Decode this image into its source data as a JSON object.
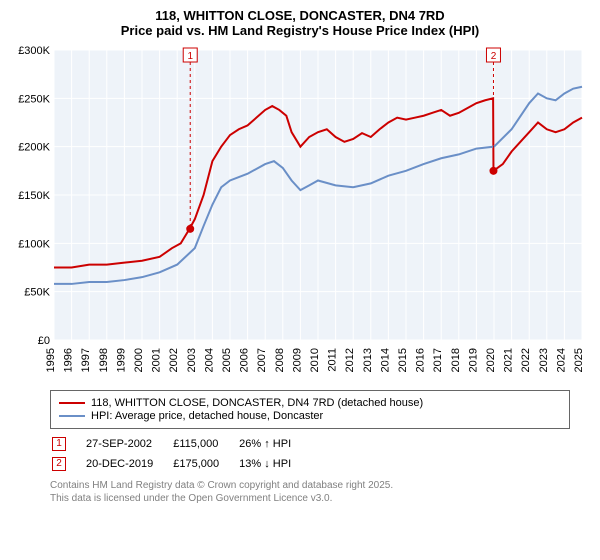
{
  "title_line1": "118, WHITTON CLOSE, DONCASTER, DN4 7RD",
  "title_line2": "Price paid vs. HM Land Registry's House Price Index (HPI)",
  "chart": {
    "type": "line",
    "plot_bg": "#eef3f9",
    "outer_bg": "#ffffff",
    "y_axis": {
      "min": 0,
      "max": 300000,
      "tick_step": 50000,
      "tick_prefix": "£",
      "tick_labels": [
        "£0",
        "£50K",
        "£100K",
        "£150K",
        "£200K",
        "£250K",
        "£300K"
      ],
      "label_fontsize": 11,
      "label_color": "#000000"
    },
    "x_axis": {
      "min": 1995,
      "max": 2025,
      "tick_step": 1,
      "years": [
        1995,
        1996,
        1997,
        1998,
        1999,
        2000,
        2001,
        2002,
        2003,
        2004,
        2005,
        2006,
        2007,
        2008,
        2009,
        2010,
        2011,
        2012,
        2013,
        2014,
        2015,
        2016,
        2017,
        2018,
        2019,
        2020,
        2021,
        2022,
        2023,
        2024,
        2025
      ],
      "label_fontsize": 11,
      "label_color": "#000000"
    },
    "grid_color": "#ffffff",
    "series": [
      {
        "name": "price_paid",
        "label": "118, WHITTON CLOSE, DONCASTER, DN4 7RD (detached house)",
        "color": "#cc0000",
        "line_width": 2,
        "data": [
          {
            "x": 1995.0,
            "y": 75000
          },
          {
            "x": 1996.0,
            "y": 75000
          },
          {
            "x": 1997.0,
            "y": 78000
          },
          {
            "x": 1998.0,
            "y": 78000
          },
          {
            "x": 1999.0,
            "y": 80000
          },
          {
            "x": 2000.0,
            "y": 82000
          },
          {
            "x": 2001.0,
            "y": 86000
          },
          {
            "x": 2001.7,
            "y": 95000
          },
          {
            "x": 2002.2,
            "y": 100000
          },
          {
            "x": 2002.7,
            "y": 115000
          },
          {
            "x": 2003.0,
            "y": 125000
          },
          {
            "x": 2003.5,
            "y": 150000
          },
          {
            "x": 2004.0,
            "y": 185000
          },
          {
            "x": 2004.5,
            "y": 200000
          },
          {
            "x": 2005.0,
            "y": 212000
          },
          {
            "x": 2005.5,
            "y": 218000
          },
          {
            "x": 2006.0,
            "y": 222000
          },
          {
            "x": 2006.5,
            "y": 230000
          },
          {
            "x": 2007.0,
            "y": 238000
          },
          {
            "x": 2007.4,
            "y": 242000
          },
          {
            "x": 2007.8,
            "y": 238000
          },
          {
            "x": 2008.2,
            "y": 232000
          },
          {
            "x": 2008.5,
            "y": 215000
          },
          {
            "x": 2009.0,
            "y": 200000
          },
          {
            "x": 2009.5,
            "y": 210000
          },
          {
            "x": 2010.0,
            "y": 215000
          },
          {
            "x": 2010.5,
            "y": 218000
          },
          {
            "x": 2011.0,
            "y": 210000
          },
          {
            "x": 2011.5,
            "y": 205000
          },
          {
            "x": 2012.0,
            "y": 208000
          },
          {
            "x": 2012.5,
            "y": 214000
          },
          {
            "x": 2013.0,
            "y": 210000
          },
          {
            "x": 2013.5,
            "y": 218000
          },
          {
            "x": 2014.0,
            "y": 225000
          },
          {
            "x": 2014.5,
            "y": 230000
          },
          {
            "x": 2015.0,
            "y": 228000
          },
          {
            "x": 2015.5,
            "y": 230000
          },
          {
            "x": 2016.0,
            "y": 232000
          },
          {
            "x": 2016.5,
            "y": 235000
          },
          {
            "x": 2017.0,
            "y": 238000
          },
          {
            "x": 2017.5,
            "y": 232000
          },
          {
            "x": 2018.0,
            "y": 235000
          },
          {
            "x": 2018.5,
            "y": 240000
          },
          {
            "x": 2019.0,
            "y": 245000
          },
          {
            "x": 2019.5,
            "y": 248000
          },
          {
            "x": 2019.95,
            "y": 250000
          },
          {
            "x": 2019.97,
            "y": 175000
          },
          {
            "x": 2020.5,
            "y": 182000
          },
          {
            "x": 2021.0,
            "y": 195000
          },
          {
            "x": 2021.5,
            "y": 205000
          },
          {
            "x": 2022.0,
            "y": 215000
          },
          {
            "x": 2022.5,
            "y": 225000
          },
          {
            "x": 2023.0,
            "y": 218000
          },
          {
            "x": 2023.5,
            "y": 215000
          },
          {
            "x": 2024.0,
            "y": 218000
          },
          {
            "x": 2024.5,
            "y": 225000
          },
          {
            "x": 2025.0,
            "y": 230000
          }
        ]
      },
      {
        "name": "hpi",
        "label": "HPI: Average price, detached house, Doncaster",
        "color": "#6a8fc7",
        "line_width": 2,
        "data": [
          {
            "x": 1995.0,
            "y": 58000
          },
          {
            "x": 1996.0,
            "y": 58000
          },
          {
            "x": 1997.0,
            "y": 60000
          },
          {
            "x": 1998.0,
            "y": 60000
          },
          {
            "x": 1999.0,
            "y": 62000
          },
          {
            "x": 2000.0,
            "y": 65000
          },
          {
            "x": 2001.0,
            "y": 70000
          },
          {
            "x": 2002.0,
            "y": 78000
          },
          {
            "x": 2003.0,
            "y": 95000
          },
          {
            "x": 2003.5,
            "y": 118000
          },
          {
            "x": 2004.0,
            "y": 140000
          },
          {
            "x": 2004.5,
            "y": 158000
          },
          {
            "x": 2005.0,
            "y": 165000
          },
          {
            "x": 2006.0,
            "y": 172000
          },
          {
            "x": 2007.0,
            "y": 182000
          },
          {
            "x": 2007.5,
            "y": 185000
          },
          {
            "x": 2008.0,
            "y": 178000
          },
          {
            "x": 2008.5,
            "y": 165000
          },
          {
            "x": 2009.0,
            "y": 155000
          },
          {
            "x": 2009.5,
            "y": 160000
          },
          {
            "x": 2010.0,
            "y": 165000
          },
          {
            "x": 2011.0,
            "y": 160000
          },
          {
            "x": 2012.0,
            "y": 158000
          },
          {
            "x": 2013.0,
            "y": 162000
          },
          {
            "x": 2014.0,
            "y": 170000
          },
          {
            "x": 2015.0,
            "y": 175000
          },
          {
            "x": 2016.0,
            "y": 182000
          },
          {
            "x": 2017.0,
            "y": 188000
          },
          {
            "x": 2018.0,
            "y": 192000
          },
          {
            "x": 2019.0,
            "y": 198000
          },
          {
            "x": 2020.0,
            "y": 200000
          },
          {
            "x": 2021.0,
            "y": 218000
          },
          {
            "x": 2022.0,
            "y": 245000
          },
          {
            "x": 2022.5,
            "y": 255000
          },
          {
            "x": 2023.0,
            "y": 250000
          },
          {
            "x": 2023.5,
            "y": 248000
          },
          {
            "x": 2024.0,
            "y": 255000
          },
          {
            "x": 2024.5,
            "y": 260000
          },
          {
            "x": 2025.0,
            "y": 262000
          }
        ]
      }
    ],
    "markers": [
      {
        "id": "1",
        "x": 2002.74,
        "y": 115000,
        "top_y": 300000,
        "color": "#cc0000",
        "line_dash": "3,3",
        "point_radius": 4
      },
      {
        "id": "2",
        "x": 2019.97,
        "y": 175000,
        "top_y": 300000,
        "color": "#cc0000",
        "line_dash": "3,3",
        "point_radius": 4
      }
    ]
  },
  "legend": {
    "border_color": "#666666",
    "rows": [
      {
        "color": "#cc0000",
        "label": "118, WHITTON CLOSE, DONCASTER, DN4 7RD (detached house)"
      },
      {
        "color": "#6a8fc7",
        "label": "HPI: Average price, detached house, Doncaster"
      }
    ]
  },
  "marker_table": {
    "rows": [
      {
        "id": "1",
        "color": "#cc0000",
        "date": "27-SEP-2002",
        "price": "£115,000",
        "delta": "26% ↑ HPI"
      },
      {
        "id": "2",
        "color": "#cc0000",
        "date": "20-DEC-2019",
        "price": "£175,000",
        "delta": "13% ↓ HPI"
      }
    ]
  },
  "footnote_line1": "Contains HM Land Registry data © Crown copyright and database right 2025.",
  "footnote_line2": "This data is licensed under the Open Government Licence v3.0."
}
